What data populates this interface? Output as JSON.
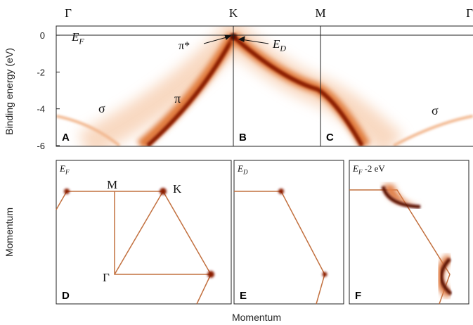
{
  "top_panel": {
    "ylabel": "Binding energy (eV)",
    "ylim": [
      0.5,
      -6
    ],
    "yticks": [
      0,
      -2,
      -4,
      -6
    ],
    "k_points": [
      "Γ",
      "K",
      "M",
      "Γ"
    ],
    "panel_labels": [
      "A",
      "B",
      "C"
    ],
    "annotations": {
      "fermi": {
        "symbol": "E",
        "subscript": "F"
      },
      "dirac": {
        "symbol": "E",
        "subscript": "D"
      },
      "pi_star": "π*",
      "pi": "π",
      "sigma_left": "σ",
      "sigma_right": "σ"
    }
  },
  "bottom_panels": [
    {
      "label": "D",
      "energy": {
        "symbol": "E",
        "subscript": "F"
      },
      "points": [
        "M",
        "K",
        "Γ"
      ]
    },
    {
      "label": "E",
      "energy": {
        "symbol": "E",
        "subscript": "D"
      }
    },
    {
      "label": "F",
      "energy": {
        "symbol": "E",
        "subscript": "F",
        "suffix": "-2 eV"
      }
    }
  ],
  "xlabel": "Momentum",
  "bottom_ylabel": "Momentum"
}
